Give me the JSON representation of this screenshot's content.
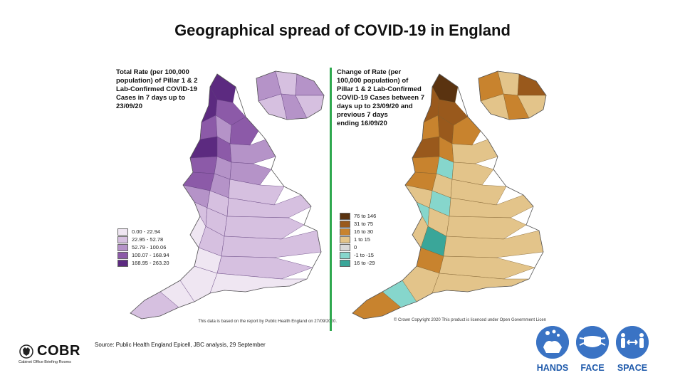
{
  "title": "Geographical spread of COVID-19 in England",
  "left_map": {
    "legend_title": "Total Rate (per 100,000\npopulation) of Pillar 1 & 2\nLab-Confirmed COVID-19\nCases in 7 days up to\n23/09/20",
    "legend": [
      {
        "label": "0.00 - 22.94",
        "color": "#efe6f2"
      },
      {
        "label": "22.95 - 52.78",
        "color": "#d6c0e0"
      },
      {
        "label": "52.79 - 100.06",
        "color": "#b593c8"
      },
      {
        "label": "100.07 - 168.94",
        "color": "#8c5aa8"
      },
      {
        "label": "168.95 - 263.20",
        "color": "#5c2a80"
      }
    ],
    "footnote": "This data is based on the report by Public Health England\non 27/09/2020.",
    "outline_color": "#5c3a78"
  },
  "right_map": {
    "legend_title": "Change of Rate (per\n100,000 population) of\nPillar 1 & 2  Lab-Confirmed\nCOVID-19 Cases between 7\ndays up to 23/09/20 and\nprevious 7 days\nending 16/09/20",
    "legend": [
      {
        "label": "76 to 146",
        "color": "#5a3310"
      },
      {
        "label": "31 to 75",
        "color": "#99591c"
      },
      {
        "label": "16 to 30",
        "color": "#c8832e"
      },
      {
        "label": "1 to 15",
        "color": "#e3c48a"
      },
      {
        "label": "0",
        "color": "#d9d9d9"
      },
      {
        "label": "-1 to -15",
        "color": "#86d6cc"
      },
      {
        "label": "16 to -29",
        "color": "#3aa699"
      }
    ],
    "footnote": "© Crown Copyright 2020\nThis product is licenced under Open Government Licen",
    "outline_color": "#7a5a2a"
  },
  "divider_color": "#2fa84f",
  "source": "Source: Public Health England Epicell, JBC analysis, 29 September",
  "cobr": {
    "name": "COBR",
    "subtitle": "Cabinet Office Briefing Rooms"
  },
  "hfs": [
    {
      "label": "HANDS",
      "icon": "hands-icon"
    },
    {
      "label": "FACE",
      "icon": "face-mask-icon"
    },
    {
      "label": "SPACE",
      "icon": "space-icon"
    }
  ]
}
